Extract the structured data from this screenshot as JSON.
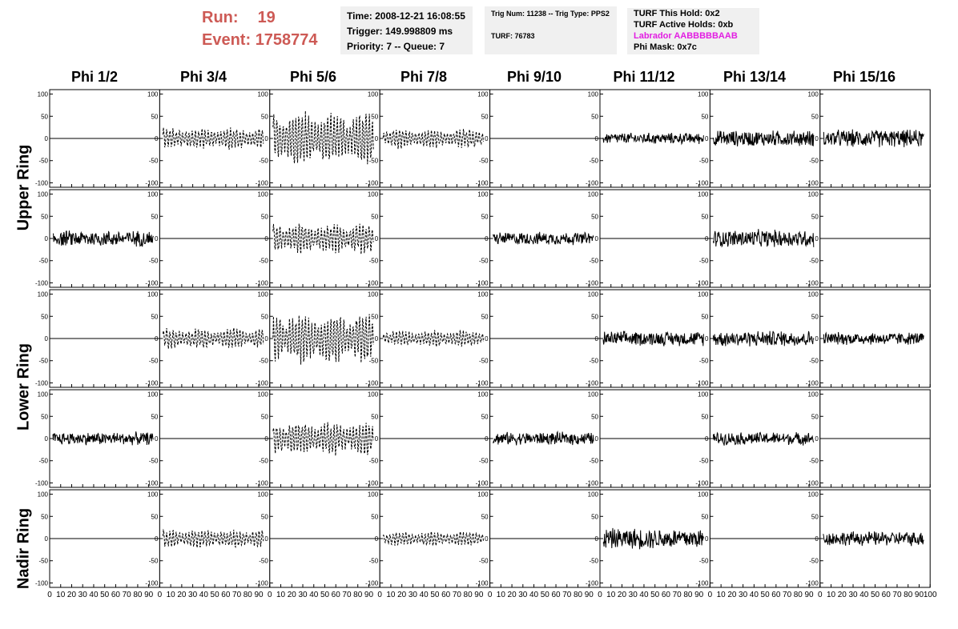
{
  "header": {
    "run_label": "Run:",
    "run_value": "19",
    "event_label": "Event:",
    "event_value": "1758774",
    "time": "Time: 2008-12-21 16:08:55",
    "trigger": "Trigger: 149.998809 ms",
    "priority": "Priority: 7 -- Queue: 7",
    "trig_num": "Trig Num: 11238 -- Trig Type: PPS2",
    "turf": "TURF: 76783",
    "turf_hold": "TURF This Hold: 0x2",
    "turf_active": "TURF Active Holds: 0xb",
    "labrador": "Labrador AABBBBBAAB",
    "phi_mask": "Phi Mask: 0x7c",
    "labrador_color": "#e21de2",
    "run_color": "#cd5a55"
  },
  "columns": [
    "Phi 1/2",
    "Phi 3/4",
    "Phi 5/6",
    "Phi 7/8",
    "Phi 9/10",
    "Phi 11/12",
    "Phi 13/14",
    "Phi 15/16"
  ],
  "rows": [
    {
      "label": "Upper Ring"
    },
    {
      "label": "Lower Ring"
    },
    {
      "label": "Nadir Ring"
    }
  ],
  "chart_data": {
    "type": "line",
    "x_range": [
      0,
      100
    ],
    "y_range": [
      -110,
      110
    ],
    "y_ticks": [
      100,
      50,
      0,
      -50,
      -100
    ],
    "x_tick_labels": [
      "0",
      "10",
      "20",
      "30",
      "40",
      "50",
      "60",
      "70",
      "80",
      "90",
      "100"
    ],
    "panel_rows": 5,
    "panel_cols": 8,
    "panels": [
      [
        {
          "style": "flat",
          "amp": 0
        },
        {
          "style": "dashed",
          "amp": 24
        },
        {
          "style": "dashed",
          "amp": 60
        },
        {
          "style": "dashed",
          "amp": 22
        },
        {
          "style": "flat",
          "amp": 0
        },
        {
          "style": "solid",
          "amp": 14
        },
        {
          "style": "solid",
          "amp": 20
        },
        {
          "style": "solid",
          "amp": 22
        }
      ],
      [
        {
          "style": "solid",
          "amp": 20
        },
        {
          "style": "flat",
          "amp": 0
        },
        {
          "style": "dashed",
          "amp": 34
        },
        {
          "style": "flat",
          "amp": 0
        },
        {
          "style": "solid",
          "amp": 16
        },
        {
          "style": "flat",
          "amp": 0
        },
        {
          "style": "solid",
          "amp": 22
        },
        {
          "style": "flat",
          "amp": 0
        }
      ],
      [
        {
          "style": "flat",
          "amp": 0
        },
        {
          "style": "dashed",
          "amp": 22
        },
        {
          "style": "dashed",
          "amp": 55
        },
        {
          "style": "dashed",
          "amp": 18
        },
        {
          "style": "flat",
          "amp": 0
        },
        {
          "style": "solid",
          "amp": 18
        },
        {
          "style": "solid",
          "amp": 20
        },
        {
          "style": "solid",
          "amp": 16
        }
      ],
      [
        {
          "style": "solid",
          "amp": 16
        },
        {
          "style": "flat",
          "amp": 0
        },
        {
          "style": "dashed",
          "amp": 38
        },
        {
          "style": "flat",
          "amp": 0
        },
        {
          "style": "solid",
          "amp": 16
        },
        {
          "style": "flat",
          "amp": 0
        },
        {
          "style": "solid",
          "amp": 16
        },
        {
          "style": "flat",
          "amp": 0
        }
      ],
      [
        {
          "style": "flat",
          "amp": 0
        },
        {
          "style": "dashed",
          "amp": 20
        },
        {
          "style": "flat",
          "amp": 0
        },
        {
          "style": "dashed",
          "amp": 16
        },
        {
          "style": "flat",
          "amp": 0
        },
        {
          "style": "solid",
          "amp": 26
        },
        {
          "style": "flat",
          "amp": 0
        },
        {
          "style": "solid",
          "amp": 18
        }
      ]
    ]
  }
}
